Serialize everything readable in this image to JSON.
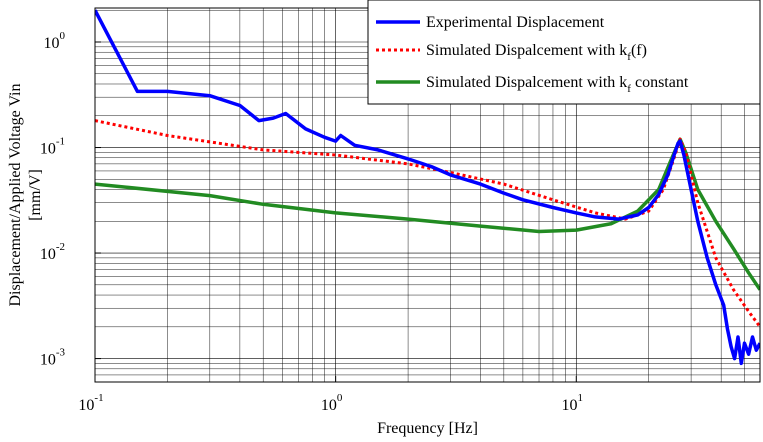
{
  "chart_data": {
    "type": "line",
    "title": "",
    "xlabel": "Frequency [Hz]",
    "ylabel_lines": [
      "Displacement/Applied Voltage Vin",
      "[mm/V]"
    ],
    "x_scale": "log",
    "y_scale": "log",
    "xlim": [
      0.1,
      58
    ],
    "ylim": [
      0.0006,
      2.1
    ],
    "grid": true,
    "legend_position": "top-right",
    "x_ticks": [
      {
        "value": 0.1,
        "base": "10",
        "exp": "-1"
      },
      {
        "value": 1,
        "base": "10",
        "exp": "0"
      },
      {
        "value": 10,
        "base": "10",
        "exp": "1"
      }
    ],
    "y_ticks": [
      {
        "value": 0.001,
        "base": "10",
        "exp": "-3"
      },
      {
        "value": 0.01,
        "base": "10",
        "exp": "-2"
      },
      {
        "value": 0.1,
        "base": "10",
        "exp": "-1"
      },
      {
        "value": 1,
        "base": "10",
        "exp": "0"
      }
    ],
    "series": [
      {
        "name": "Experimental Displacement",
        "legend_parts": [
          {
            "text": "Experimental Displacement"
          }
        ],
        "color": "#0000ff",
        "style": "solid",
        "width": 3.5,
        "x": [
          0.1,
          0.15,
          0.2,
          0.3,
          0.4,
          0.48,
          0.55,
          0.62,
          0.75,
          0.9,
          1.0,
          1.05,
          1.2,
          1.5,
          2.0,
          2.5,
          3.0,
          4.0,
          5.0,
          6.0,
          8.0,
          10.0,
          12.0,
          15.0,
          18.0,
          20.0,
          22.0,
          24.0,
          25.5,
          26.5,
          27.0,
          28.0,
          30.0,
          32.0,
          35.0,
          38.0,
          41.0,
          42.5,
          44.0,
          45.5,
          47.0,
          48.5,
          50.0,
          52.0,
          54.0,
          56.0,
          58.0
        ],
        "y": [
          2.0,
          0.34,
          0.34,
          0.31,
          0.25,
          0.18,
          0.19,
          0.21,
          0.15,
          0.125,
          0.115,
          0.13,
          0.105,
          0.095,
          0.078,
          0.066,
          0.055,
          0.045,
          0.037,
          0.032,
          0.027,
          0.024,
          0.022,
          0.021,
          0.023,
          0.027,
          0.036,
          0.055,
          0.085,
          0.11,
          0.115,
          0.085,
          0.04,
          0.02,
          0.009,
          0.005,
          0.0032,
          0.0019,
          0.0013,
          0.001,
          0.0016,
          0.0009,
          0.0014,
          0.0011,
          0.0016,
          0.0012,
          0.0014
        ]
      },
      {
        "name": "Simulated Dispalcement with kf(f)",
        "legend_parts": [
          {
            "text": "Simulated Dispalcement with k"
          },
          {
            "text": "f",
            "sub": true
          },
          {
            "text": "(f)"
          }
        ],
        "color": "#ff0000",
        "style": "dotted",
        "width": 3,
        "x": [
          0.1,
          0.2,
          0.5,
          1.0,
          2.0,
          3.0,
          5.0,
          8.0,
          12.0,
          16.0,
          20.0,
          23.0,
          25.5,
          27.0,
          28.5,
          32.0,
          38.0,
          45.0,
          52.0,
          58.0
        ],
        "y": [
          0.18,
          0.13,
          0.095,
          0.085,
          0.07,
          0.058,
          0.045,
          0.032,
          0.024,
          0.021,
          0.025,
          0.04,
          0.08,
          0.12,
          0.09,
          0.03,
          0.009,
          0.0045,
          0.0028,
          0.002
        ]
      },
      {
        "name": "Simulated Dispalcement with kf constant",
        "legend_parts": [
          {
            "text": "Simulated Dispalcement with k"
          },
          {
            "text": "f",
            "sub": true
          },
          {
            "text": " constant"
          }
        ],
        "color": "#228b22",
        "style": "solid",
        "width": 3.5,
        "x": [
          0.1,
          0.3,
          0.5,
          1.0,
          2.0,
          4.0,
          7.0,
          10.0,
          14.0,
          18.0,
          22.0,
          25.0,
          27.0,
          28.5,
          32.0,
          38.0,
          45.0,
          52.0,
          58.0
        ],
        "y": [
          0.045,
          0.035,
          0.029,
          0.024,
          0.021,
          0.018,
          0.016,
          0.0165,
          0.019,
          0.025,
          0.04,
          0.08,
          0.12,
          0.09,
          0.04,
          0.02,
          0.011,
          0.0065,
          0.0045
        ]
      }
    ]
  }
}
